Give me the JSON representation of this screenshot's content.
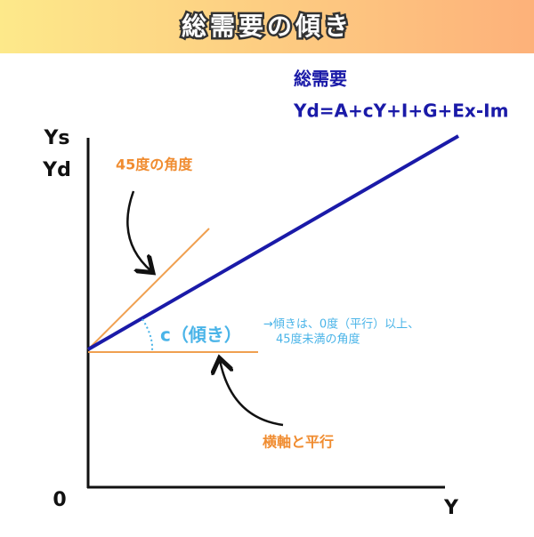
{
  "header": {
    "title": "総需要の傾き"
  },
  "axes": {
    "y_label_1": "Ys",
    "y_label_2": "Yd",
    "origin": "0",
    "x_label": "Y"
  },
  "demand_line": {
    "label": "総需要",
    "formula": "Yd=A+cY+I+G+Ex-Im"
  },
  "annotations": {
    "angle_45": "45度の角度",
    "horizontal": "横軸と平行",
    "slope": "c（傾き）",
    "note_1": "→傾きは、0度（平行）以上、",
    "note_2": "45度未満の角度"
  }
}
